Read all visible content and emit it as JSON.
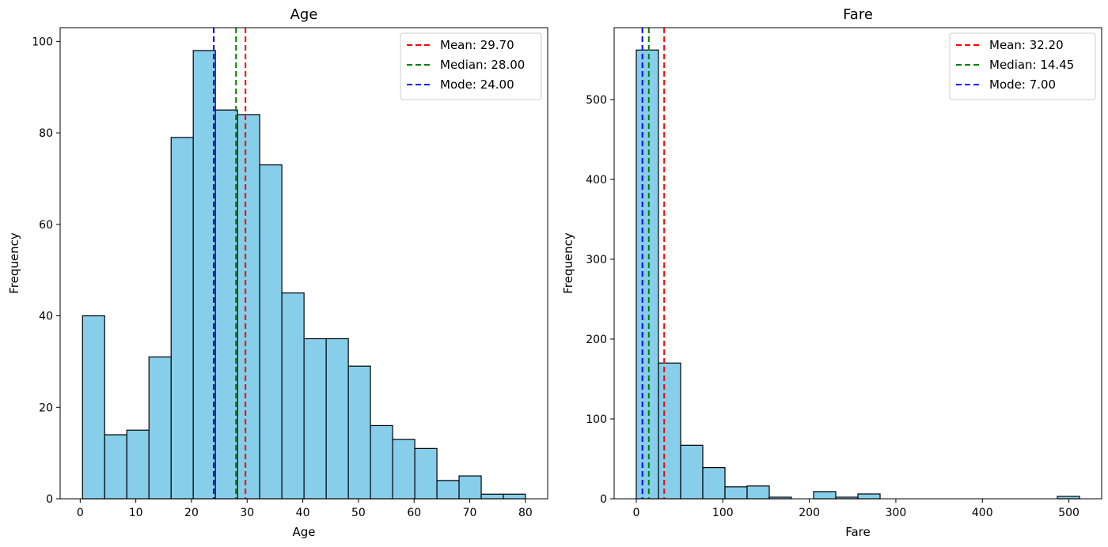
{
  "chart_data": [
    {
      "type": "bar",
      "subtype": "histogram",
      "title": "Age",
      "xlabel": "Age",
      "ylabel": "Frequency",
      "xlim": [
        -3.6,
        84.0
      ],
      "ylim": [
        0,
        103.0
      ],
      "xticks": [
        0,
        10,
        20,
        30,
        40,
        50,
        60,
        70,
        80
      ],
      "yticks": [
        0,
        20,
        40,
        60,
        80,
        100
      ],
      "bin_edges": [
        0.42,
        4.4,
        8.38,
        12.36,
        16.34,
        20.32,
        24.3,
        28.28,
        32.26,
        36.24,
        40.22,
        44.2,
        48.18,
        52.16,
        56.14,
        60.12,
        64.1,
        68.08,
        72.06,
        76.04,
        80.0
      ],
      "values": [
        40,
        14,
        15,
        31,
        79,
        98,
        85,
        84,
        73,
        45,
        35,
        35,
        29,
        16,
        13,
        11,
        4,
        5,
        1,
        1
      ],
      "bar_color": "#87ceeb",
      "edge_color": "#000000",
      "grid": false,
      "legend_position": "top-right",
      "reference_lines": [
        {
          "label": "Mean: 29.70",
          "value": 29.7,
          "color": "#ff0000"
        },
        {
          "label": "Median: 28.00",
          "value": 28.0,
          "color": "#008000"
        },
        {
          "label": "Mode: 24.00",
          "value": 24.0,
          "color": "#0000ff"
        }
      ]
    },
    {
      "type": "bar",
      "subtype": "histogram",
      "title": "Fare",
      "xlabel": "Fare",
      "ylabel": "Frequency",
      "xlim": [
        -25.6,
        537.9
      ],
      "ylim": [
        0,
        590
      ],
      "xticks": [
        0,
        100,
        200,
        300,
        400,
        500
      ],
      "yticks": [
        0,
        100,
        200,
        300,
        400,
        500
      ],
      "bin_edges": [
        0,
        25.62,
        51.23,
        76.85,
        102.47,
        128.08,
        153.7,
        179.32,
        204.93,
        230.55,
        256.16,
        281.78,
        307.4,
        333.01,
        358.63,
        384.25,
        409.86,
        435.48,
        461.1,
        486.71,
        512.33
      ],
      "values": [
        562,
        170,
        67,
        39,
        15,
        16,
        2,
        0,
        9,
        2,
        6,
        0,
        0,
        0,
        0,
        0,
        0,
        0,
        0,
        3
      ],
      "bar_color": "#87ceeb",
      "edge_color": "#000000",
      "grid": false,
      "legend_position": "top-right",
      "reference_lines": [
        {
          "label": "Mean: 32.20",
          "value": 32.2,
          "color": "#ff0000"
        },
        {
          "label": "Median: 14.45",
          "value": 14.45,
          "color": "#008000"
        },
        {
          "label": "Mode: 7.00",
          "value": 7.0,
          "color": "#0000ff"
        }
      ]
    }
  ]
}
